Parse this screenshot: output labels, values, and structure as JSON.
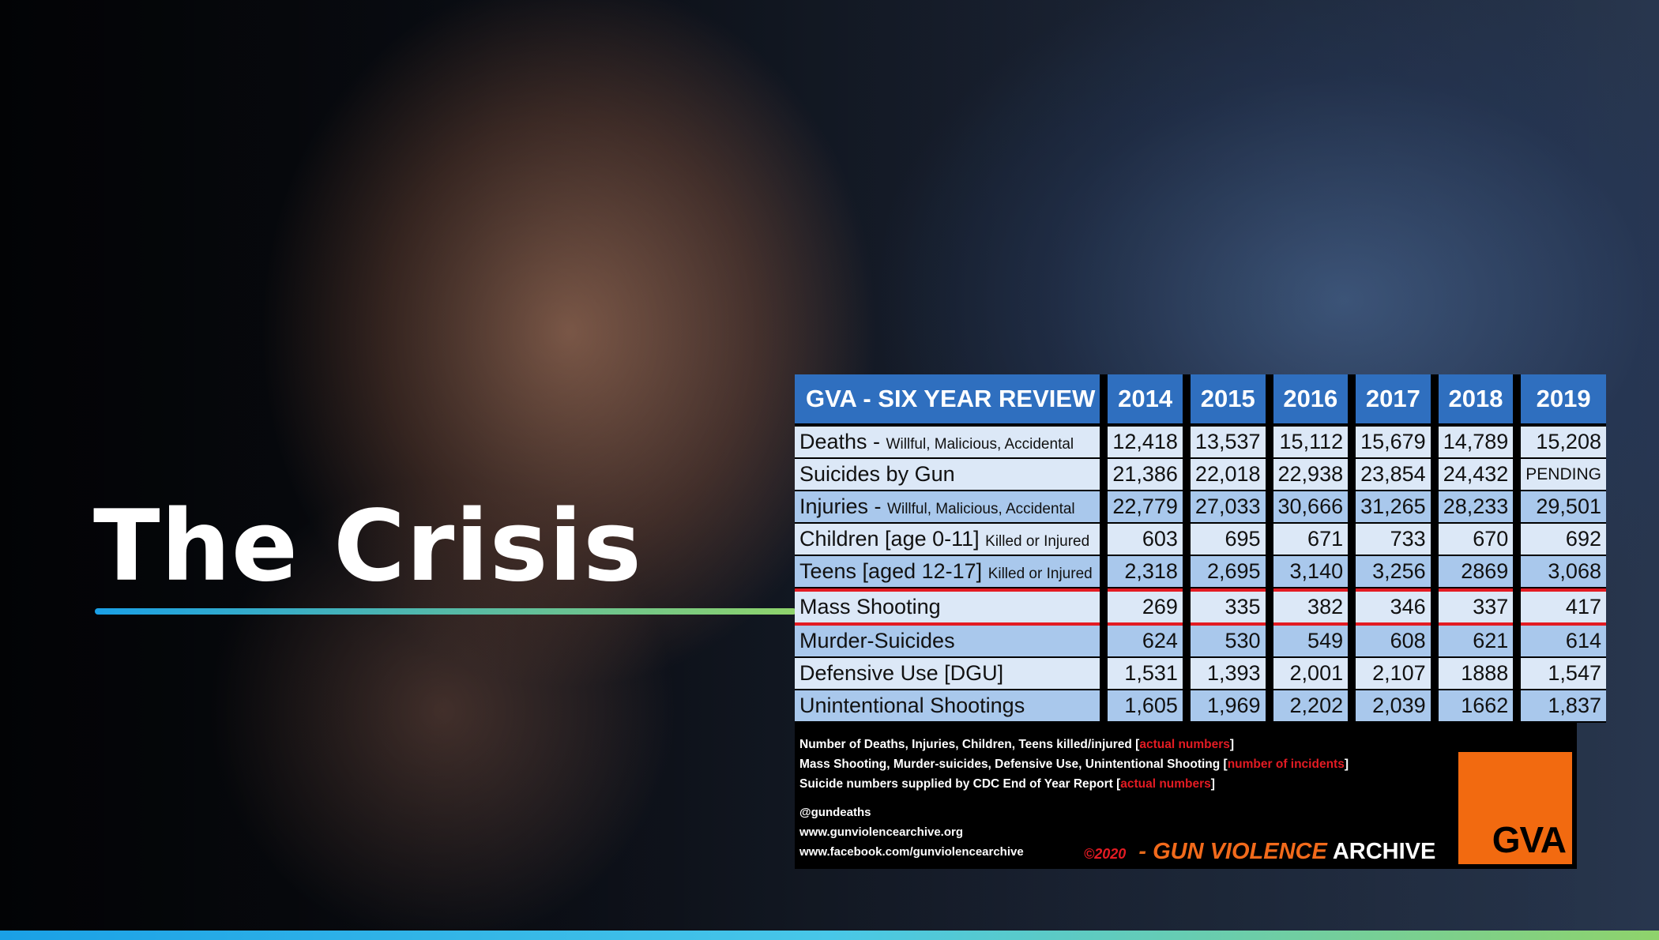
{
  "slide": {
    "title": "The Crisis"
  },
  "table": {
    "header": [
      "GVA - SIX YEAR REVIEW",
      "2014",
      "2015",
      "2016",
      "2017",
      "2018",
      "2019"
    ],
    "rows": [
      {
        "main": "Deaths - ",
        "sub": "Willful, Malicious, Accidental",
        "values": [
          "12,418",
          "13,537",
          "15,112",
          "15,679",
          "14,789",
          "15,208"
        ]
      },
      {
        "main": "Suicides by Gun",
        "sub": "",
        "values": [
          "21,386",
          "22,018",
          "22,938",
          "23,854",
          "24,432",
          "PENDING"
        ]
      },
      {
        "main": "Injuries - ",
        "sub": "Willful, Malicious, Accidental",
        "values": [
          "22,779",
          "27,033",
          "30,666",
          "31,265",
          "28,233",
          "29,501"
        ]
      },
      {
        "main": "Children [age 0-11] ",
        "sub": "Killed or Injured",
        "values": [
          "603",
          "695",
          "671",
          "733",
          "670",
          "692"
        ]
      },
      {
        "main": "Teens [aged 12-17] ",
        "sub": "Killed or Injured",
        "values": [
          "2,318",
          "2,695",
          "3,140",
          "3,256",
          "2869",
          "3,068"
        ]
      },
      {
        "main": "Mass Shooting",
        "sub": "",
        "values": [
          "269",
          "335",
          "382",
          "346",
          "337",
          "417"
        ]
      },
      {
        "main": "Murder-Suicides",
        "sub": "",
        "values": [
          "624",
          "530",
          "549",
          "608",
          "621",
          "614"
        ]
      },
      {
        "main": "Defensive Use [DGU]",
        "sub": "",
        "values": [
          "1,531",
          "1,393",
          "2,001",
          "2,107",
          "1888",
          "1,547"
        ]
      },
      {
        "main": "Unintentional Shootings",
        "sub": "",
        "values": [
          "1,605",
          "1,969",
          "2,202",
          "2,039",
          "1662",
          "1,837"
        ]
      }
    ]
  },
  "notes": [
    {
      "text": "Number of Deaths, Injuries, Children, Teens  killed/injured [",
      "red": "actual numbers",
      "end": "]"
    },
    {
      "text": "Mass Shooting, Murder-suicides, Defensive Use, Unintentional Shooting [",
      "red": "number of incidents",
      "end": "]"
    },
    {
      "text": "Suicide numbers supplied by CDC End of Year Report [",
      "red": "actual numbers",
      "end": "]"
    }
  ],
  "contacts": [
    " @gundeaths",
    "www.gunviolencearchive.org",
    "www.facebook.com/gunviolencearchive"
  ],
  "footer": {
    "copyright": "©2020",
    "dash": " - ",
    "org_colored": "GUN VIOLENCE",
    "org_white": " ARCHIVE",
    "logo_text": "GVA"
  },
  "colors": {
    "header_blue": "#2f6fbf",
    "row_light": "#dce8f7",
    "row_mid": "#a9c8ec",
    "highlight_red": "#e31b23",
    "logo_orange": "#f26a10"
  }
}
